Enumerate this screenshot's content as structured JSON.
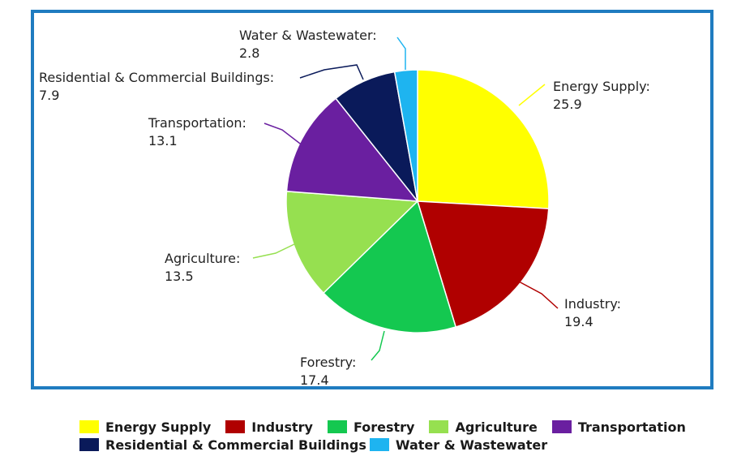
{
  "chart_data": {
    "type": "pie",
    "title": "",
    "slices": [
      {
        "label": "Energy Supply",
        "value": 25.9,
        "color": "#ffff00",
        "value_text": "25.9"
      },
      {
        "label": "Industry",
        "value": 19.4,
        "color": "#b00000",
        "value_text": "19.4"
      },
      {
        "label": "Forestry",
        "value": 17.4,
        "color": "#14c850",
        "value_text": "17.4"
      },
      {
        "label": "Agriculture",
        "value": 13.5,
        "color": "#96e050",
        "value_text": "13.5"
      },
      {
        "label": "Transportation",
        "value": 13.1,
        "color": "#6a1fa0",
        "value_text": "13.1"
      },
      {
        "label": "Residential & Commercial Buildings",
        "value": 7.9,
        "color": "#0a1a5a",
        "value_text": "7.9"
      },
      {
        "label": "Water & Wastewater",
        "value": 2.8,
        "color": "#1eb4f0",
        "value_text": "2.8"
      }
    ],
    "legend": {
      "rows": [
        [
          "Energy Supply",
          "Industry",
          "Forestry",
          "Agriculture",
          "Transportation"
        ],
        [
          "Residential & Commercial Buildings",
          "Water & Wastewater"
        ]
      ]
    }
  },
  "frame_color": "#1f7cc0"
}
